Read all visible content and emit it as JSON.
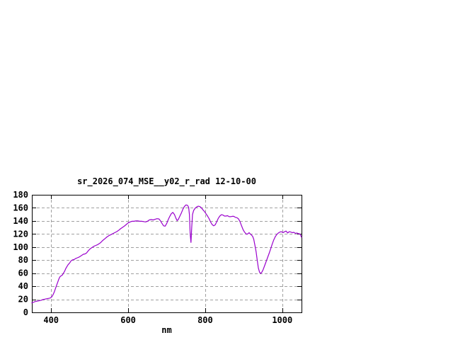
{
  "window": {
    "background": "#ffffff"
  },
  "chart_data": {
    "type": "line",
    "title": "sr_2026_074_MSE__y02_r_rad 12-10-00",
    "xlabel": "nm",
    "ylabel": "",
    "xlim": [
      350,
      1050
    ],
    "ylim": [
      0,
      180
    ],
    "xticks": [
      400,
      600,
      800,
      1000
    ],
    "yticks": [
      0,
      20,
      40,
      60,
      80,
      100,
      120,
      140,
      160,
      180
    ],
    "grid": true,
    "legend": "none",
    "colors": {
      "line": "#9a00cd",
      "grid": "#a0a0a0",
      "frame": "#000000",
      "text": "#000000",
      "background": "#ffffff"
    },
    "series": [
      {
        "name": "sr_2026_074_MSE__y02_r_rad",
        "color": "#9a00cd",
        "points": [
          [
            350,
            14.5
          ],
          [
            354,
            15.5
          ],
          [
            358,
            16.5
          ],
          [
            362,
            17
          ],
          [
            366,
            17.5
          ],
          [
            370,
            18
          ],
          [
            374,
            18.5
          ],
          [
            378,
            19.5
          ],
          [
            382,
            20
          ],
          [
            386,
            20.5
          ],
          [
            390,
            21
          ],
          [
            394,
            21.5
          ],
          [
            398,
            22
          ],
          [
            402,
            24
          ],
          [
            405,
            27
          ],
          [
            408,
            31
          ],
          [
            411,
            36
          ],
          [
            414,
            41
          ],
          [
            417,
            46
          ],
          [
            420,
            51
          ],
          [
            423,
            54.5
          ],
          [
            426,
            56
          ],
          [
            429,
            57
          ],
          [
            432,
            60
          ],
          [
            435,
            63
          ],
          [
            438,
            67
          ],
          [
            441,
            70
          ],
          [
            444,
            73
          ],
          [
            448,
            75.5
          ],
          [
            452,
            79
          ],
          [
            456,
            80.5
          ],
          [
            460,
            81
          ],
          [
            464,
            82.5
          ],
          [
            468,
            83.5
          ],
          [
            472,
            84.5
          ],
          [
            476,
            86
          ],
          [
            480,
            87.5
          ],
          [
            484,
            89
          ],
          [
            488,
            89.5
          ],
          [
            492,
            91
          ],
          [
            496,
            94
          ],
          [
            500,
            96.5
          ],
          [
            504,
            98.5
          ],
          [
            508,
            100
          ],
          [
            512,
            101.5
          ],
          [
            516,
            102.5
          ],
          [
            520,
            103.5
          ],
          [
            524,
            105
          ],
          [
            528,
            106.5
          ],
          [
            532,
            109
          ],
          [
            536,
            111
          ],
          [
            540,
            113
          ],
          [
            545,
            115.5
          ],
          [
            550,
            117.5
          ],
          [
            555,
            119
          ],
          [
            560,
            120.5
          ],
          [
            565,
            122
          ],
          [
            570,
            123.5
          ],
          [
            575,
            125.5
          ],
          [
            580,
            128
          ],
          [
            585,
            130
          ],
          [
            590,
            132
          ],
          [
            595,
            134.5
          ],
          [
            600,
            137
          ],
          [
            605,
            138.5
          ],
          [
            610,
            139.5
          ],
          [
            615,
            139.5
          ],
          [
            620,
            140
          ],
          [
            625,
            140
          ],
          [
            630,
            139.5
          ],
          [
            635,
            139.5
          ],
          [
            640,
            139
          ],
          [
            645,
            138.5
          ],
          [
            650,
            139.5
          ],
          [
            655,
            141.5
          ],
          [
            660,
            142
          ],
          [
            665,
            141.5
          ],
          [
            670,
            142.5
          ],
          [
            675,
            143.5
          ],
          [
            680,
            143
          ],
          [
            684,
            140
          ],
          [
            688,
            136
          ],
          [
            692,
            132.5
          ],
          [
            696,
            132
          ],
          [
            700,
            136
          ],
          [
            704,
            142
          ],
          [
            708,
            147
          ],
          [
            712,
            151
          ],
          [
            716,
            153
          ],
          [
            720,
            150
          ],
          [
            724,
            144
          ],
          [
            727,
            140.5
          ],
          [
            730,
            142
          ],
          [
            734,
            147
          ],
          [
            738,
            152
          ],
          [
            742,
            158
          ],
          [
            746,
            162
          ],
          [
            750,
            164.5
          ],
          [
            754,
            164
          ],
          [
            757,
            161
          ],
          [
            759,
            150
          ],
          [
            761,
            120
          ],
          [
            763,
            107
          ],
          [
            765,
            131
          ],
          [
            767,
            150
          ],
          [
            770,
            156
          ],
          [
            774,
            159.5
          ],
          [
            778,
            161.5
          ],
          [
            782,
            162.5
          ],
          [
            786,
            162
          ],
          [
            790,
            160
          ],
          [
            794,
            157
          ],
          [
            798,
            154.5
          ],
          [
            802,
            151
          ],
          [
            806,
            147.5
          ],
          [
            810,
            143.5
          ],
          [
            814,
            138.5
          ],
          [
            818,
            134.5
          ],
          [
            822,
            132.5
          ],
          [
            826,
            134
          ],
          [
            830,
            139
          ],
          [
            834,
            144
          ],
          [
            838,
            147.5
          ],
          [
            842,
            149.5
          ],
          [
            846,
            149
          ],
          [
            850,
            147.5
          ],
          [
            854,
            147.5
          ],
          [
            858,
            148
          ],
          [
            862,
            146.5
          ],
          [
            866,
            146.5
          ],
          [
            870,
            147
          ],
          [
            874,
            147
          ],
          [
            878,
            145.5
          ],
          [
            882,
            145
          ],
          [
            886,
            143.5
          ],
          [
            890,
            139.5
          ],
          [
            894,
            133
          ],
          [
            898,
            127
          ],
          [
            902,
            123
          ],
          [
            905,
            121
          ],
          [
            908,
            119.5
          ],
          [
            911,
            120.5
          ],
          [
            914,
            122
          ],
          [
            917,
            120
          ],
          [
            920,
            118.5
          ],
          [
            923,
            116.5
          ],
          [
            926,
            112
          ],
          [
            929,
            103
          ],
          [
            932,
            93
          ],
          [
            935,
            80
          ],
          [
            938,
            68
          ],
          [
            941,
            61.5
          ],
          [
            944,
            59.5
          ],
          [
            947,
            61.5
          ],
          [
            950,
            65
          ],
          [
            954,
            71
          ],
          [
            958,
            77.5
          ],
          [
            962,
            84
          ],
          [
            966,
            90.5
          ],
          [
            970,
            97.5
          ],
          [
            974,
            104.5
          ],
          [
            978,
            111
          ],
          [
            982,
            116
          ],
          [
            986,
            119.5
          ],
          [
            990,
            121.5
          ],
          [
            994,
            123
          ],
          [
            998,
            123.5
          ],
          [
            1002,
            122
          ],
          [
            1006,
            123.5
          ],
          [
            1010,
            124.5
          ],
          [
            1014,
            121.5
          ],
          [
            1018,
            123.5
          ],
          [
            1022,
            123
          ],
          [
            1026,
            122
          ],
          [
            1030,
            122.5
          ],
          [
            1034,
            121
          ],
          [
            1038,
            121.5
          ],
          [
            1042,
            120.5
          ],
          [
            1046,
            120
          ],
          [
            1050,
            115
          ]
        ]
      }
    ]
  }
}
